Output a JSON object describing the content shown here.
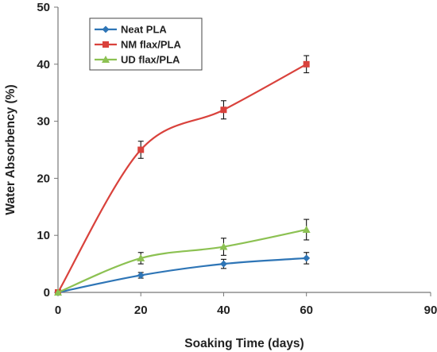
{
  "chart_data": {
    "type": "line",
    "xlabel": "Soaking Time (days)",
    "ylabel": "Water Absorbency (%)",
    "xlim": [
      0,
      90
    ],
    "ylim": [
      0,
      50
    ],
    "xticks": [
      0,
      20,
      40,
      60,
      90
    ],
    "yticks": [
      0,
      10,
      20,
      30,
      40,
      50
    ],
    "grid": false,
    "legend_position": "top-left",
    "series": [
      {
        "name": "Neat PLA",
        "color": "#2e75b6",
        "marker": "diamond",
        "x": [
          0,
          20,
          40,
          60
        ],
        "y": [
          0,
          3,
          5,
          6
        ],
        "err": [
          0,
          0.5,
          0.8,
          1.0
        ]
      },
      {
        "name": "NM flax/PLA",
        "color": "#d9423c",
        "marker": "square",
        "x": [
          0,
          20,
          40,
          60
        ],
        "y": [
          0,
          25,
          32,
          40
        ],
        "err": [
          0,
          1.5,
          1.6,
          1.5
        ]
      },
      {
        "name": "UD flax/PLA",
        "color": "#8cc152",
        "marker": "triangle",
        "x": [
          0,
          20,
          40,
          60
        ],
        "y": [
          0,
          6,
          8,
          11
        ],
        "err": [
          0,
          1.0,
          1.5,
          1.8
        ]
      }
    ]
  }
}
